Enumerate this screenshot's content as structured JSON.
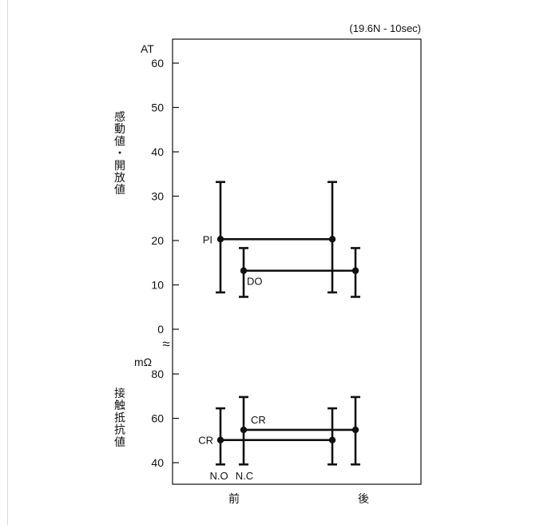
{
  "chart_data": {
    "type": "error-bar",
    "condition_note": "(19.6N - 10sec)",
    "x_categories": [
      "前",
      "後"
    ],
    "top_panel": {
      "unit": "AT",
      "ylabel": "感動値・開放値",
      "ylim": [
        0,
        60
      ],
      "ticks": [
        "0",
        "10",
        "20",
        "30",
        "40",
        "50",
        "60"
      ],
      "series": [
        {
          "name": "PI",
          "points": [
            {
              "x": "前",
              "mean": 20.3,
              "min": 8.3,
              "max": 33.2
            },
            {
              "x": "後",
              "mean": 20.3,
              "min": 8.3,
              "max": 33.2
            }
          ]
        },
        {
          "name": "DO",
          "points": [
            {
              "x": "前",
              "mean": 13.2,
              "min": 7.3,
              "max": 18.3
            },
            {
              "x": "後",
              "mean": 13.2,
              "min": 7.3,
              "max": 18.3
            }
          ]
        }
      ]
    },
    "bottom_panel": {
      "unit": "mΩ",
      "ylabel": "接触抵抗値",
      "ylim": [
        40,
        80
      ],
      "ticks": [
        "40",
        "60",
        "80"
      ],
      "sub_categories": [
        "N.O",
        "N.C"
      ],
      "series": [
        {
          "name": "CR",
          "group": "N.O",
          "points": [
            {
              "x": "前",
              "mean": 50.2,
              "min": 39.2,
              "max": 64.5
            },
            {
              "x": "後",
              "mean": 50.2,
              "min": 39.2,
              "max": 64.5
            }
          ]
        },
        {
          "name": "CR",
          "group": "N.C",
          "points": [
            {
              "x": "前",
              "mean": 54.8,
              "min": 39.2,
              "max": 69.6
            },
            {
              "x": "後",
              "mean": 54.8,
              "min": 39.2,
              "max": 69.6
            }
          ]
        }
      ]
    },
    "break_symbol": "≈"
  }
}
